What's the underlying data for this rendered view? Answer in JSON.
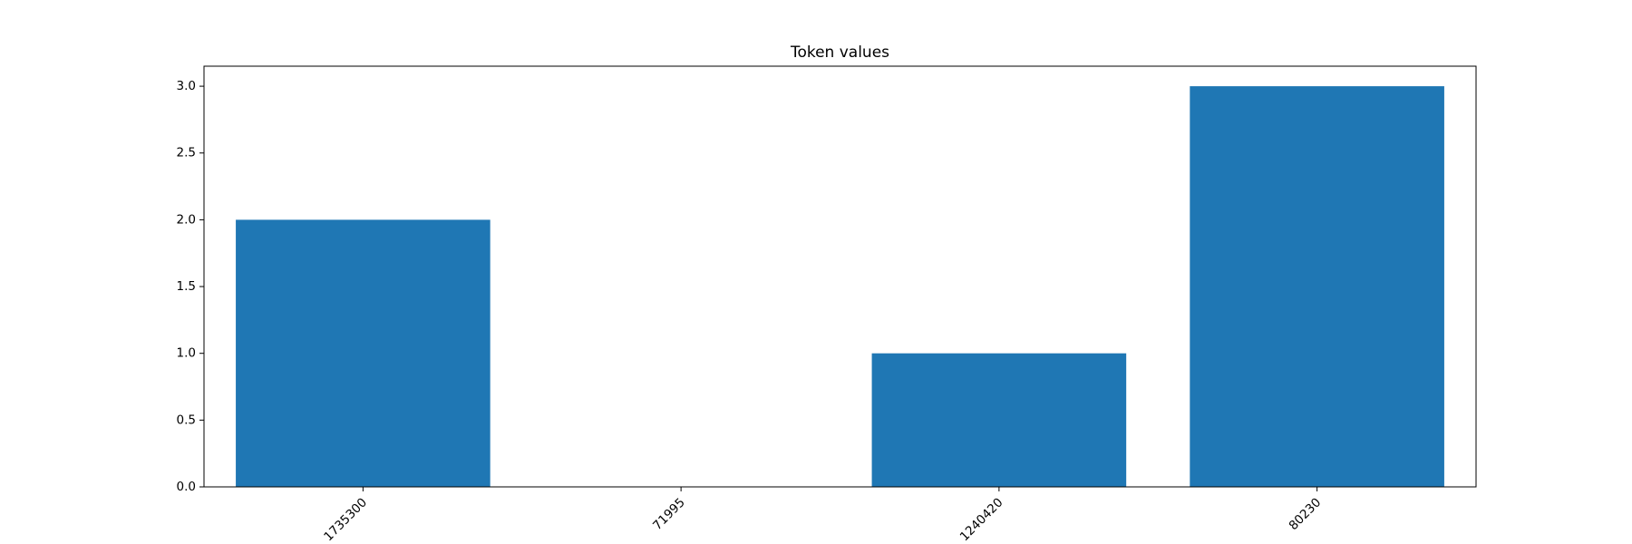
{
  "chart_data": {
    "type": "bar",
    "title": "Token values",
    "xlabel": "",
    "ylabel": "",
    "categories": [
      "1735300",
      "71995",
      "1240420",
      "80230"
    ],
    "values": [
      2,
      0,
      1,
      3
    ],
    "ylim": [
      0,
      3.15
    ],
    "yticks": [
      0.0,
      0.5,
      1.0,
      1.5,
      2.0,
      2.5,
      3.0
    ],
    "ytick_labels": [
      "0.0",
      "0.5",
      "1.0",
      "1.5",
      "2.0",
      "2.5",
      "3.0"
    ],
    "bar_color": "#1f77b4",
    "grid": false,
    "legend": "none",
    "xtick_rotation": "45 degrees, right-aligned"
  }
}
